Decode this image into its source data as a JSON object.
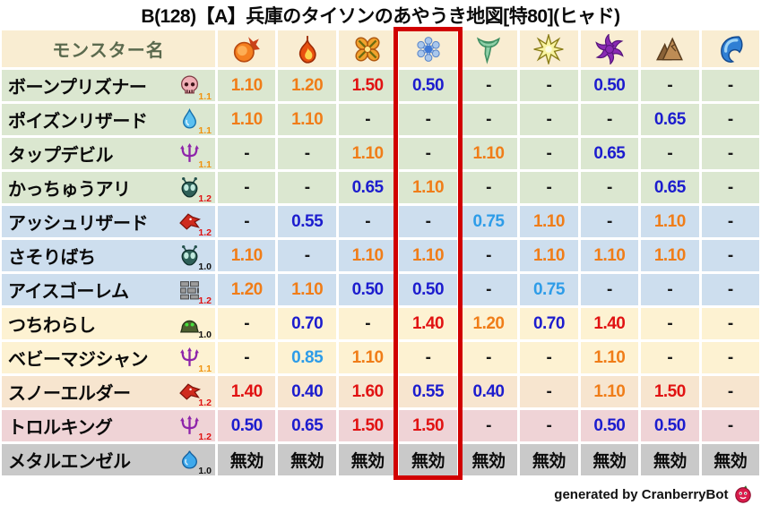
{
  "title": "B(128)【A】兵庫のタイソンのあやうき地図[特80](ヒャド)",
  "footer": {
    "credit": "generated by CranberryBot",
    "icon": "cranberry-icon"
  },
  "table": {
    "name_header": "モンスター名",
    "highlight_color": "#d10000",
    "highlighted_column": "ice",
    "columns": [
      {
        "id": "fire",
        "icon": "fire-icon"
      },
      {
        "id": "flame",
        "icon": "flame-icon"
      },
      {
        "id": "explosion",
        "icon": "explosion-icon"
      },
      {
        "id": "ice",
        "icon": "ice-icon",
        "highlighted": true
      },
      {
        "id": "wind",
        "icon": "wind-icon"
      },
      {
        "id": "lightning",
        "icon": "lightning-icon"
      },
      {
        "id": "dark",
        "icon": "dark-icon"
      },
      {
        "id": "earth",
        "icon": "earth-icon"
      },
      {
        "id": "water",
        "icon": "water-icon"
      }
    ],
    "value_colors": {
      "strong_weakness": "#e11212",
      "weakness": "#f07d18",
      "light_resist": "#2d9ce8",
      "resist": "#1c1cce",
      "neutral": "#1a1a1a",
      "immune": "#0a0a0a"
    },
    "row_bg_colors": {
      "green": "#dbe7d0",
      "blue": "#cddeee",
      "cream": "#fdf2d2",
      "tan": "#f7e5cf",
      "pink": "#efd3d6",
      "gray": "#c9c9c9"
    },
    "multiplier_colors": {
      "1.0": "#111111",
      "1.1": "#f0930f",
      "1.2": "#e01111"
    },
    "rows": [
      {
        "name": "ボーンプリズナー",
        "family_icon": "skull-icon",
        "multiplier": "1.1",
        "bg": "green",
        "values": [
          "1.10",
          "1.20",
          "1.50",
          "0.50",
          "-",
          "-",
          "0.50",
          "-",
          "-"
        ]
      },
      {
        "name": "ポイズンリザード",
        "family_icon": "drop-icon",
        "multiplier": "1.1",
        "bg": "green",
        "values": [
          "1.10",
          "1.10",
          "-",
          "-",
          "-",
          "-",
          "-",
          "0.65",
          "-"
        ]
      },
      {
        "name": "タップデビル",
        "family_icon": "trident-icon",
        "multiplier": "1.1",
        "bg": "green",
        "values": [
          "-",
          "-",
          "1.10",
          "-",
          "1.10",
          "-",
          "0.65",
          "-",
          "-"
        ]
      },
      {
        "name": "かっちゅうアリ",
        "family_icon": "bug-icon",
        "multiplier": "1.2",
        "bg": "green",
        "values": [
          "-",
          "-",
          "0.65",
          "1.10",
          "-",
          "-",
          "-",
          "0.65",
          "-"
        ]
      },
      {
        "name": "アッシュリザード",
        "family_icon": "dragon-icon",
        "multiplier": "1.2",
        "bg": "blue",
        "values": [
          "-",
          "0.55",
          "-",
          "-",
          "0.75",
          "1.10",
          "-",
          "1.10",
          "-"
        ]
      },
      {
        "name": "さそりばち",
        "family_icon": "bug-icon",
        "multiplier": "1.0",
        "bg": "blue",
        "values": [
          "1.10",
          "-",
          "1.10",
          "1.10",
          "-",
          "1.10",
          "1.10",
          "1.10",
          "-"
        ]
      },
      {
        "name": "アイスゴーレム",
        "family_icon": "wall-icon",
        "multiplier": "1.2",
        "bg": "blue",
        "values": [
          "1.20",
          "1.10",
          "0.50",
          "0.50",
          "-",
          "0.75",
          "-",
          "-",
          "-"
        ]
      },
      {
        "name": "つちわらし",
        "family_icon": "dome-icon",
        "multiplier": "1.0",
        "bg": "cream",
        "values": [
          "-",
          "0.70",
          "-",
          "1.40",
          "1.20",
          "0.70",
          "1.40",
          "-",
          "-"
        ]
      },
      {
        "name": "ベビーマジシャン",
        "family_icon": "trident-icon",
        "multiplier": "1.1",
        "bg": "cream",
        "values": [
          "-",
          "0.85",
          "1.10",
          "-",
          "-",
          "-",
          "1.10",
          "-",
          "-"
        ]
      },
      {
        "name": "スノーエルダー",
        "family_icon": "dragon-icon",
        "multiplier": "1.2",
        "bg": "tan",
        "values": [
          "1.40",
          "0.40",
          "1.60",
          "0.55",
          "0.40",
          "-",
          "1.10",
          "1.50",
          "-"
        ]
      },
      {
        "name": "トロルキング",
        "family_icon": "trident-icon",
        "multiplier": "1.2",
        "bg": "pink",
        "values": [
          "0.50",
          "0.65",
          "1.50",
          "1.50",
          "-",
          "-",
          "0.50",
          "0.50",
          "-"
        ]
      },
      {
        "name": "メタルエンゼル",
        "family_icon": "slime-icon",
        "multiplier": "1.0",
        "bg": "gray",
        "values": [
          "無効",
          "無効",
          "無効",
          "無効",
          "無効",
          "無効",
          "無効",
          "無効",
          "無効"
        ]
      }
    ]
  }
}
